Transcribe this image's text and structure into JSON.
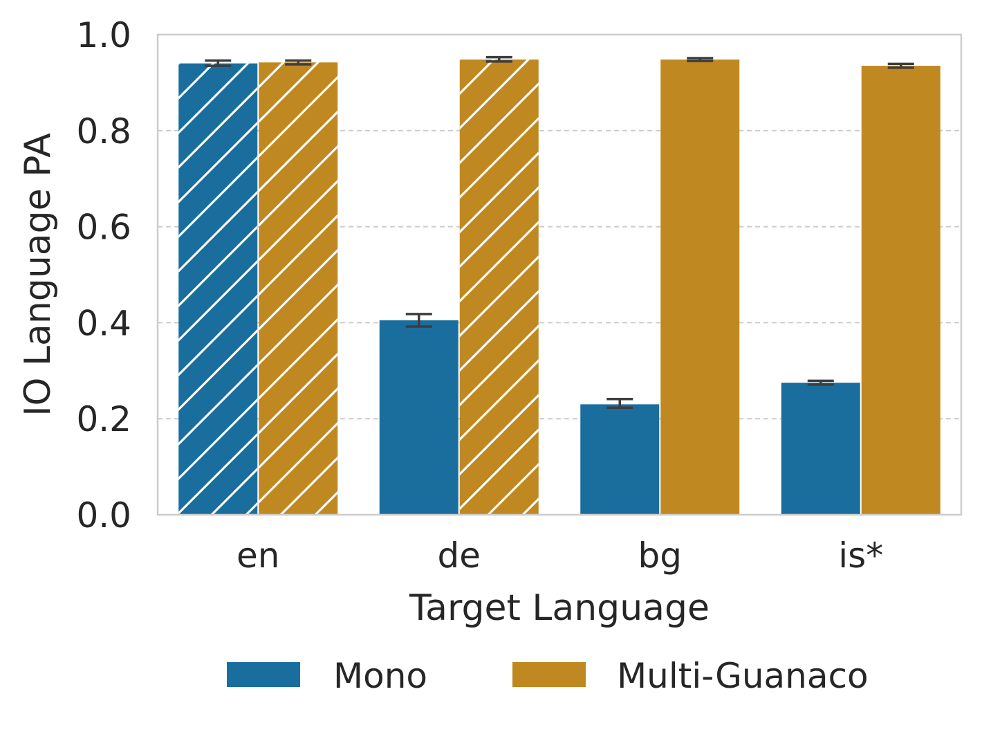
{
  "chart_data": {
    "type": "bar",
    "categories": [
      "en",
      "de",
      "bg",
      "is*"
    ],
    "series": [
      {
        "name": "Mono",
        "color": "#1a6e9e",
        "values": [
          0.94,
          0.405,
          0.23,
          0.275
        ],
        "error_low": [
          0.935,
          0.392,
          0.223,
          0.271
        ],
        "error_high": [
          0.946,
          0.418,
          0.241,
          0.279
        ],
        "hatched": [
          true,
          false,
          false,
          false
        ]
      },
      {
        "name": "Multi-Guanaco",
        "color": "#c08821",
        "values": [
          0.942,
          0.948,
          0.948,
          0.935
        ],
        "error_low": [
          0.938,
          0.944,
          0.945,
          0.931
        ],
        "error_high": [
          0.946,
          0.953,
          0.951,
          0.939
        ],
        "hatched": [
          true,
          true,
          false,
          false
        ]
      }
    ],
    "xlabel": "Target Language",
    "ylabel": "IO Language PA",
    "ylim": [
      0,
      1.0
    ],
    "yticks": [
      "0.0",
      "0.2",
      "0.4",
      "0.6",
      "0.8",
      "1.0"
    ],
    "grid": "horizontal dashed",
    "legend": "bottom"
  }
}
